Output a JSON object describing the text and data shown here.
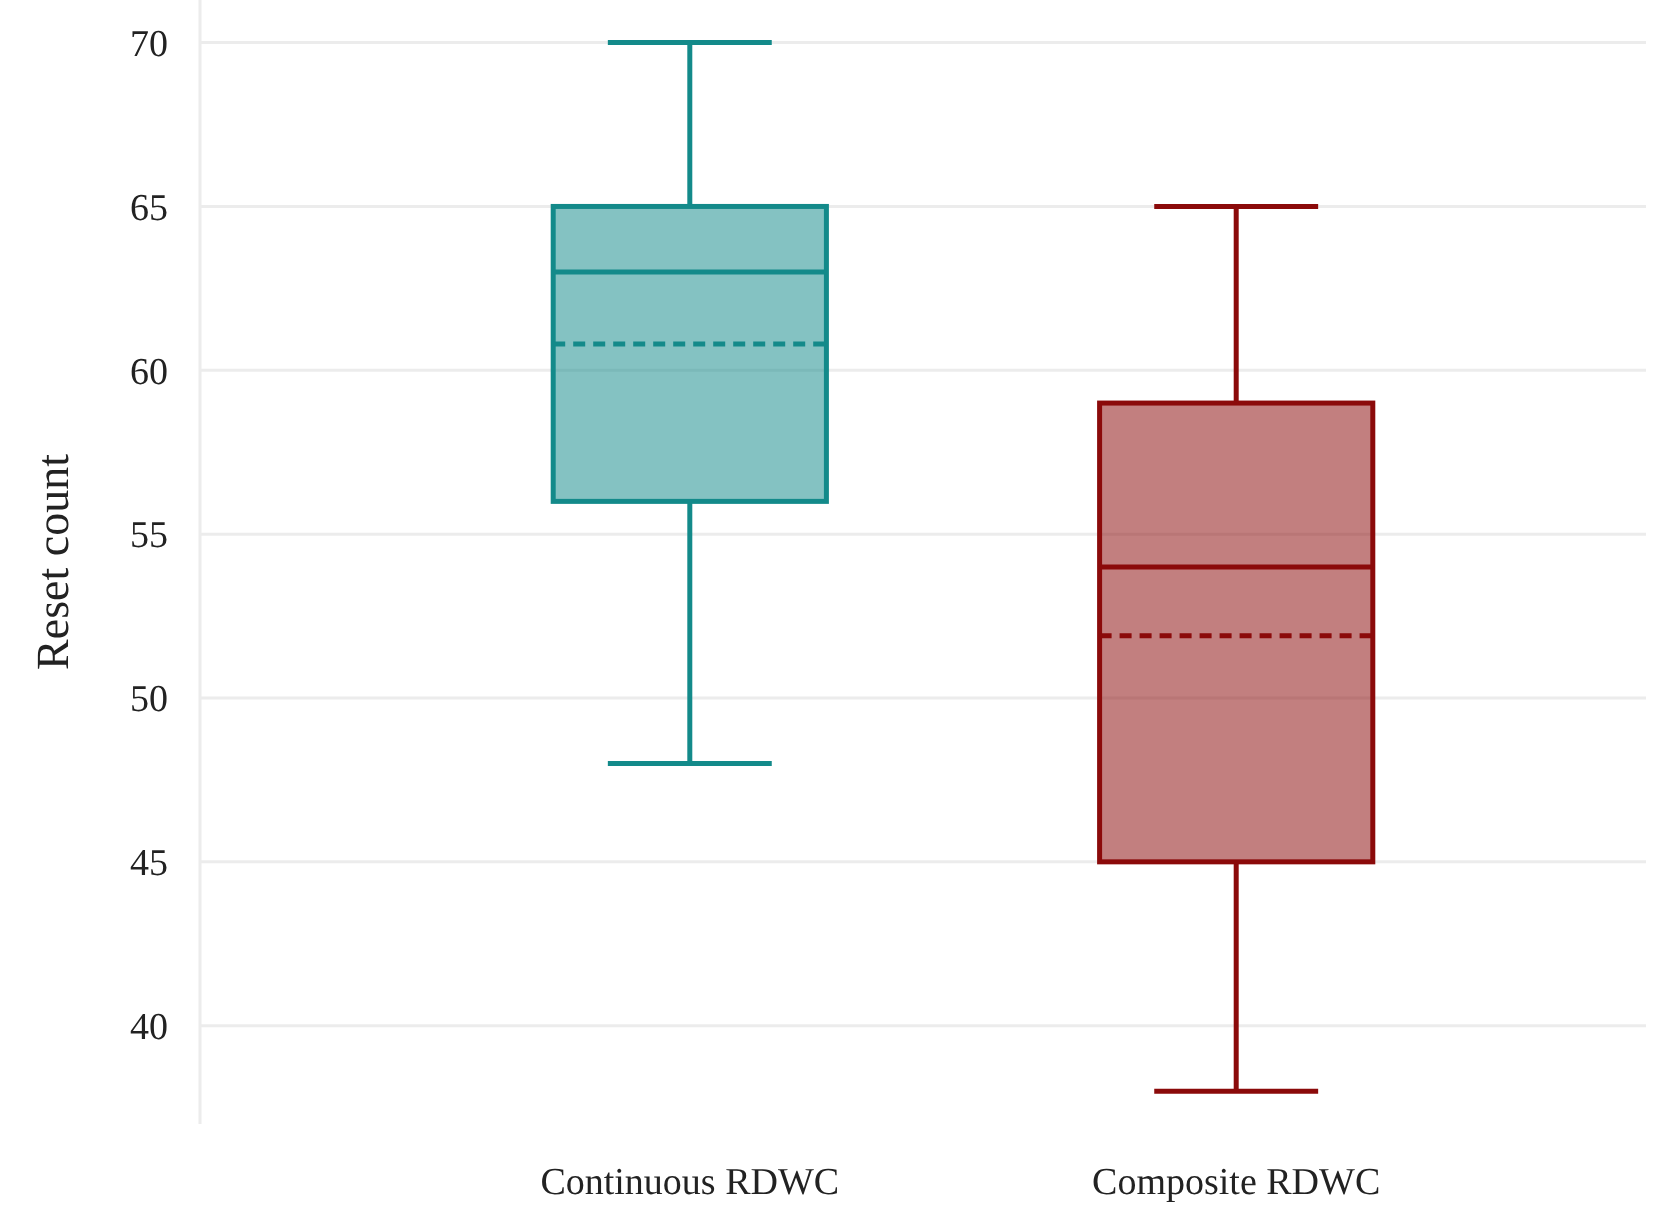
{
  "chart_data": {
    "type": "box",
    "ylabel": "Reset count",
    "categories": [
      "Continuous RDWC",
      "Composite RDWC"
    ],
    "colors": [
      "#138a8a",
      "#8b0a0a"
    ],
    "boxes": [
      {
        "low": 48,
        "q1": 56,
        "median": 63,
        "q3": 65,
        "high": 70,
        "mean": 60.8
      },
      {
        "low": 38,
        "q1": 45,
        "median": 54,
        "q3": 59,
        "high": 65,
        "mean": 51.9
      }
    ],
    "ylim": [
      37,
      71.3
    ],
    "yticks": [
      40,
      45,
      50,
      55,
      60,
      65,
      70
    ],
    "grid": "y"
  }
}
